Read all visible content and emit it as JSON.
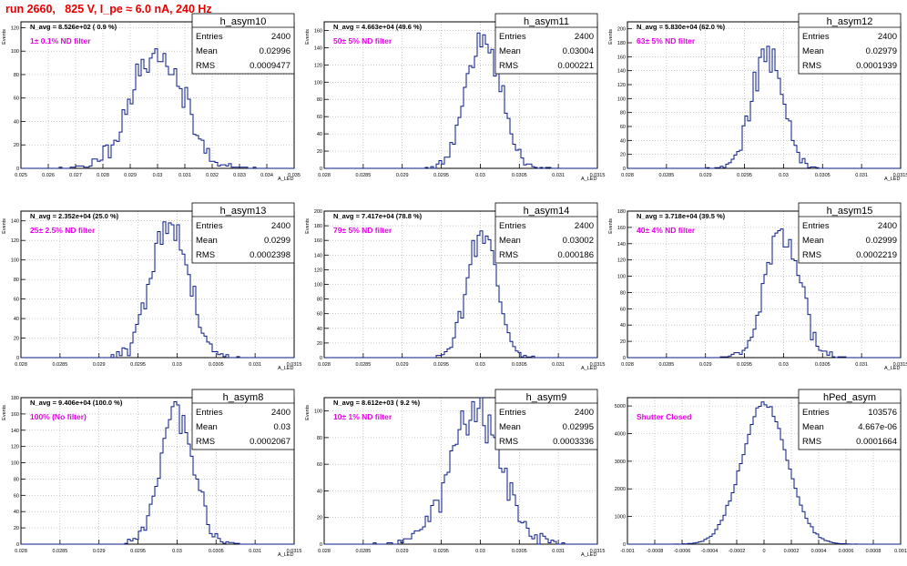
{
  "run_title": "run 2660,   825 V, I_pe ≈ 6.0 nA, 240 Hz",
  "colors": {
    "histogram": "#0a1a8a",
    "filter_label": "#e600e6",
    "title": "#e60000",
    "grid": "#aaaaaa"
  },
  "chart_data": [
    {
      "type": "histogram",
      "name": "h_asym10",
      "ylabel": "Events",
      "xlabel": "A_LED",
      "stats": {
        "Entries": "2400",
        "Mean": "0.02996",
        "RMS": "0.0009477"
      },
      "navg_label": "N_avg = 8.526e+02 ( 0.9 %)",
      "filter_label": "1± 0.1% ND filter",
      "xlim": [
        0.025,
        0.035
      ],
      "ylim": [
        0,
        125
      ],
      "xticks": [
        0.025,
        0.026,
        0.027,
        0.028,
        0.029,
        0.03,
        0.031,
        0.032,
        0.033,
        0.034,
        0.035
      ],
      "xtick_labels": [
        "0.025",
        "0.026",
        "0.027",
        "0.028",
        "0.029",
        "0.03",
        "0.031",
        "0.032",
        "0.033",
        "0.034",
        "0.035"
      ],
      "yticks": [
        0,
        20,
        40,
        60,
        80,
        100,
        120
      ],
      "dist": {
        "mean": 0.02996,
        "rms": 0.0009477,
        "entries": 2400,
        "nbins": 100,
        "seed": 11
      }
    },
    {
      "type": "histogram",
      "name": "h_asym11",
      "ylabel": "Events",
      "xlabel": "A_LED",
      "stats": {
        "Entries": "2400",
        "Mean": "0.03004",
        "RMS": "0.000221"
      },
      "navg_label": "N_avg = 4.663e+04 (49.6 %)",
      "filter_label": "50± 5% ND filter",
      "xlim": [
        0.028,
        0.0315
      ],
      "ylim": [
        0,
        170
      ],
      "xticks": [
        0.028,
        0.0285,
        0.029,
        0.0295,
        0.03,
        0.0305,
        0.031,
        0.0315
      ],
      "xtick_labels": [
        "0.028",
        "0.0285",
        "0.029",
        "0.0295",
        "0.03",
        "0.0305",
        "0.031",
        "0.0315"
      ],
      "yticks": [
        0,
        20,
        40,
        60,
        80,
        100,
        120,
        140,
        160
      ],
      "dist": {
        "mean": 0.03004,
        "rms": 0.000221,
        "entries": 2400,
        "nbins": 100,
        "seed": 12
      }
    },
    {
      "type": "histogram",
      "name": "h_asym12",
      "ylabel": "Events",
      "xlabel": "A_LED",
      "stats": {
        "Entries": "2400",
        "Mean": "0.02979",
        "RMS": "0.0001939"
      },
      "navg_label": "N_avg = 5.830e+04 (62.0 %)",
      "filter_label": "63± 5% ND filter",
      "xlim": [
        0.028,
        0.0315
      ],
      "ylim": [
        0,
        210
      ],
      "xticks": [
        0.028,
        0.0285,
        0.029,
        0.0295,
        0.03,
        0.0305,
        0.031,
        0.0315
      ],
      "xtick_labels": [
        "0.028",
        "0.0285",
        "0.029",
        "0.0295",
        "0.03",
        "0.0305",
        "0.031",
        "0.0315"
      ],
      "yticks": [
        0,
        20,
        40,
        60,
        80,
        100,
        120,
        140,
        160,
        180,
        200
      ],
      "dist": {
        "mean": 0.02979,
        "rms": 0.0001939,
        "entries": 2400,
        "nbins": 100,
        "seed": 13
      }
    },
    {
      "type": "histogram",
      "name": "h_asym13",
      "ylabel": "Events",
      "xlabel": "A_LED",
      "stats": {
        "Entries": "2400",
        "Mean": "0.0299",
        "RMS": "0.0002398"
      },
      "navg_label": "N_avg = 2.352e+04 (25.0 %)",
      "filter_label": "25± 2.5% ND filter",
      "xlim": [
        0.028,
        0.0315
      ],
      "ylim": [
        0,
        150
      ],
      "xticks": [
        0.028,
        0.0285,
        0.029,
        0.0295,
        0.03,
        0.0305,
        0.031,
        0.0315
      ],
      "xtick_labels": [
        "0.028",
        "0.0285",
        "0.029",
        "0.0295",
        "0.03",
        "0.0305",
        "0.031",
        "0.0315"
      ],
      "yticks": [
        0,
        20,
        40,
        60,
        80,
        100,
        120,
        140
      ],
      "dist": {
        "mean": 0.0299,
        "rms": 0.0002398,
        "entries": 2400,
        "nbins": 100,
        "seed": 14
      }
    },
    {
      "type": "histogram",
      "name": "h_asym14",
      "ylabel": "Events",
      "xlabel": "A_LED",
      "stats": {
        "Entries": "2400",
        "Mean": "0.03002",
        "RMS": "0.000186"
      },
      "navg_label": "N_avg = 7.417e+04 (78.8 %)",
      "filter_label": "79± 5% ND filter",
      "xlim": [
        0.028,
        0.0315
      ],
      "ylim": [
        0,
        200
      ],
      "xticks": [
        0.028,
        0.0285,
        0.029,
        0.0295,
        0.03,
        0.0305,
        0.031,
        0.0315
      ],
      "xtick_labels": [
        "0.028",
        "0.0285",
        "0.029",
        "0.0295",
        "0.03",
        "0.0305",
        "0.031",
        "0.0315"
      ],
      "yticks": [
        0,
        20,
        40,
        60,
        80,
        100,
        120,
        140,
        160,
        180,
        200
      ],
      "dist": {
        "mean": 0.03002,
        "rms": 0.000186,
        "entries": 2400,
        "nbins": 100,
        "seed": 15
      }
    },
    {
      "type": "histogram",
      "name": "h_asym15",
      "ylabel": "Events",
      "xlabel": "A_LED",
      "stats": {
        "Entries": "2400",
        "Mean": "0.02999",
        "RMS": "0.0002219"
      },
      "navg_label": "N_avg = 3.718e+04 (39.5 %)",
      "filter_label": "40± 4% ND filter",
      "xlim": [
        0.028,
        0.0315
      ],
      "ylim": [
        0,
        180
      ],
      "xticks": [
        0.028,
        0.0285,
        0.029,
        0.0295,
        0.03,
        0.0305,
        0.031,
        0.0315
      ],
      "xtick_labels": [
        "0.028",
        "0.0285",
        "0.029",
        "0.0295",
        "0.03",
        "0.0305",
        "0.031",
        "0.0315"
      ],
      "yticks": [
        0,
        20,
        40,
        60,
        80,
        100,
        120,
        140,
        160,
        180
      ],
      "dist": {
        "mean": 0.02999,
        "rms": 0.0002219,
        "entries": 2400,
        "nbins": 100,
        "seed": 16
      }
    },
    {
      "type": "histogram",
      "name": "h_asym8",
      "ylabel": "Events",
      "xlabel": "A_LED",
      "stats": {
        "Entries": "2400",
        "Mean": "0.03",
        "RMS": "0.0002067"
      },
      "navg_label": "N_avg = 9.406e+04 (100.0 %)",
      "filter_label": "100% (No filter)",
      "xlim": [
        0.028,
        0.0315
      ],
      "ylim": [
        0,
        180
      ],
      "xticks": [
        0.028,
        0.0285,
        0.029,
        0.0295,
        0.03,
        0.0305,
        0.031,
        0.0315
      ],
      "xtick_labels": [
        "0.028",
        "0.0285",
        "0.029",
        "0.0295",
        "0.03",
        "0.0305",
        "0.031",
        "0.0315"
      ],
      "yticks": [
        0,
        20,
        40,
        60,
        80,
        100,
        120,
        140,
        160,
        180
      ],
      "dist": {
        "mean": 0.03,
        "rms": 0.0002067,
        "entries": 2400,
        "nbins": 100,
        "seed": 17
      }
    },
    {
      "type": "histogram",
      "name": "h_asym9",
      "ylabel": "Events",
      "xlabel": "A_LED",
      "stats": {
        "Entries": "2400",
        "Mean": "0.02995",
        "RMS": "0.0003336"
      },
      "navg_label": "N_avg = 8.612e+03 ( 9.2 %)",
      "filter_label": "10± 1% ND filter",
      "xlim": [
        0.028,
        0.0315
      ],
      "ylim": [
        0,
        110
      ],
      "xticks": [
        0.028,
        0.0285,
        0.029,
        0.0295,
        0.03,
        0.0305,
        0.031,
        0.0315
      ],
      "xtick_labels": [
        "0.028",
        "0.0285",
        "0.029",
        "0.0295",
        "0.03",
        "0.0305",
        "0.031",
        "0.0315"
      ],
      "yticks": [
        0,
        20,
        40,
        60,
        80,
        100
      ],
      "dist": {
        "mean": 0.02995,
        "rms": 0.0003336,
        "entries": 2400,
        "nbins": 100,
        "seed": 18
      }
    },
    {
      "type": "histogram",
      "name": "hPed_asym",
      "ylabel": "",
      "xlabel": "",
      "stats": {
        "Entries": "103576",
        "Mean": "4.667e-06",
        "RMS": "0.0001664"
      },
      "navg_label": "",
      "filter_label": "Shutter Closed",
      "xlim": [
        -0.001,
        0.001
      ],
      "ylim": [
        0,
        5300
      ],
      "xticks": [
        -0.001,
        -0.0008,
        -0.0006,
        -0.0004,
        -0.0002,
        0,
        0.0002,
        0.0004,
        0.0006,
        0.0008,
        0.001
      ],
      "xtick_labels": [
        "-0.001",
        "-0.0008",
        "-0.0006",
        "-0.0004",
        "-0.0002",
        "0",
        "0.0002",
        "0.0004",
        "0.0006",
        "0.0008",
        "0.001"
      ],
      "yticks": [
        0,
        1000,
        2000,
        3000,
        4000,
        5000
      ],
      "dist": {
        "mean": 4.667e-06,
        "rms": 0.0001664,
        "entries": 103576,
        "nbins": 100,
        "seed": 19,
        "peak": 5100
      }
    }
  ]
}
